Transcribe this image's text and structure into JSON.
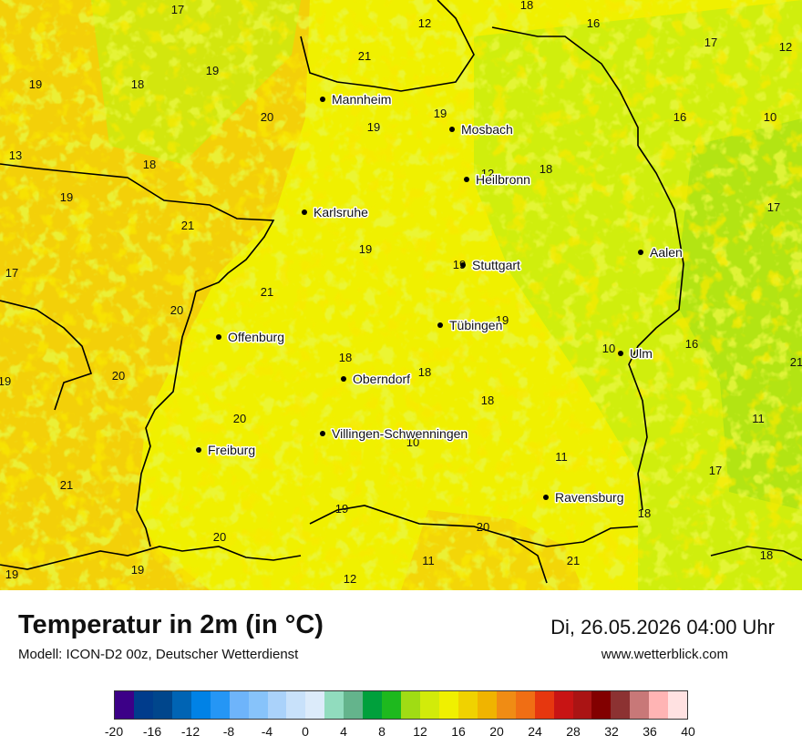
{
  "title": "Temperatur in 2m (in °C)",
  "model": "Modell: ICON-D2 00z, Deutscher Wetterdienst",
  "datetime": "Di, 26.05.2026 04:00 Uhr",
  "website": "www.wetterblick.com",
  "colors": {
    "base_warm": "#f3ca0b",
    "base_mid": "#f0f000",
    "base_cool": "#c8ee10",
    "base_green": "#9bdc1a",
    "border_lines": "#000000"
  },
  "cities": [
    {
      "name": "Mannheim"
    },
    {
      "name": "Mosbach"
    },
    {
      "name": "Heilbronn"
    },
    {
      "name": "Karlsruhe"
    },
    {
      "name": "Aalen"
    },
    {
      "name": "Stuttgart"
    },
    {
      "name": "Tübingen"
    },
    {
      "name": "Offenburg"
    },
    {
      "name": "Ulm"
    },
    {
      "name": "Oberndorf"
    },
    {
      "name": "Villingen-Schwenningen"
    },
    {
      "name": "Freiburg"
    },
    {
      "name": "Ravensburg"
    }
  ],
  "temperature_labels": [
    "17",
    "12",
    "18",
    "16",
    "17",
    "12",
    "21",
    "19",
    "19",
    "18",
    "20",
    "19",
    "19",
    "16",
    "10",
    "13",
    "18",
    "12",
    "18",
    "19",
    "21",
    "17",
    "19",
    "17",
    "19",
    "18",
    "21",
    "20",
    "19",
    "20",
    "10",
    "16",
    "21",
    "18",
    "19",
    "18",
    "18",
    "20",
    "11",
    "10",
    "11",
    "17",
    "21",
    "19",
    "18",
    "20",
    "20",
    "21",
    "19",
    "19",
    "12",
    "11",
    "18"
  ],
  "colorbar": {
    "colors": [
      "#3c0087",
      "#003c8c",
      "#00468c",
      "#0064b4",
      "#0082e6",
      "#2596f5",
      "#6eb4fa",
      "#87c3fa",
      "#aad2fa",
      "#c8e1fa",
      "#dcebfa",
      "#91dcbe",
      "#64b48c",
      "#00a03c",
      "#1eb91e",
      "#a0dc14",
      "#d2eb0a",
      "#f0f000",
      "#f0d200",
      "#f0b400",
      "#f08c14",
      "#f06e14",
      "#e6370f",
      "#c81414",
      "#aa1414",
      "#820000",
      "#8c3232",
      "#c87878",
      "#ffb4b4",
      "#ffe1e1"
    ],
    "ticks": [
      "-20",
      "-16",
      "-12",
      "-8",
      "-4",
      "0",
      "4",
      "8",
      "12",
      "16",
      "20",
      "24",
      "28",
      "32",
      "36",
      "40"
    ]
  }
}
